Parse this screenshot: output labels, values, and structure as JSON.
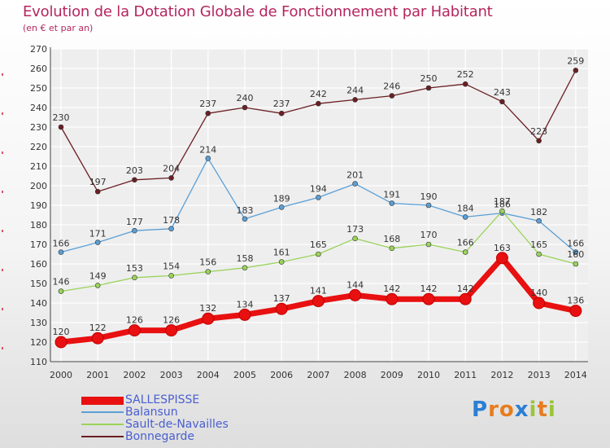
{
  "title": "Evolution de la Dotation Globale de Fonctionnement par Habitant",
  "subtitle": "(en € et par an)",
  "logo": {
    "letters": [
      "P",
      "r",
      "o",
      "x",
      "i",
      "t",
      "i"
    ],
    "colors": [
      "#2a7fd4",
      "#e87c1e",
      "#e87c1e",
      "#2a7fd4",
      "#9bc43a",
      "#e87c1e",
      "#9bc43a"
    ]
  },
  "chart_data": {
    "type": "line",
    "x": [
      "2000",
      "2001",
      "2002",
      "2003",
      "2004",
      "2005",
      "2006",
      "2007",
      "2008",
      "2009",
      "2010",
      "2011",
      "2012",
      "2013",
      "2014"
    ],
    "ylim": [
      110,
      270
    ],
    "yticks": [
      110,
      120,
      130,
      140,
      150,
      160,
      170,
      180,
      190,
      200,
      210,
      220,
      230,
      240,
      250,
      260,
      270
    ],
    "grid": true,
    "legend_position": "bottom-left",
    "series": [
      {
        "name": "Bonnegarde",
        "color": "#6b1f24",
        "values": [
          230,
          197,
          203,
          204,
          237,
          240,
          237,
          242,
          244,
          246,
          250,
          252,
          243,
          223,
          259
        ]
      },
      {
        "name": "Balansun",
        "color": "#5b9fd6",
        "values": [
          166,
          171,
          177,
          178,
          214,
          183,
          189,
          194,
          201,
          191,
          190,
          184,
          186,
          182,
          166
        ]
      },
      {
        "name": "Sault-de-Navailles",
        "color": "#9ad35a",
        "values": [
          146,
          149,
          153,
          154,
          156,
          158,
          161,
          165,
          173,
          168,
          170,
          166,
          187,
          165,
          160
        ]
      },
      {
        "name": "SALLESPISSE",
        "color": "#e81010",
        "values": [
          120,
          122,
          126,
          126,
          132,
          134,
          137,
          141,
          144,
          142,
          142,
          142,
          163,
          140,
          136
        ]
      }
    ]
  }
}
